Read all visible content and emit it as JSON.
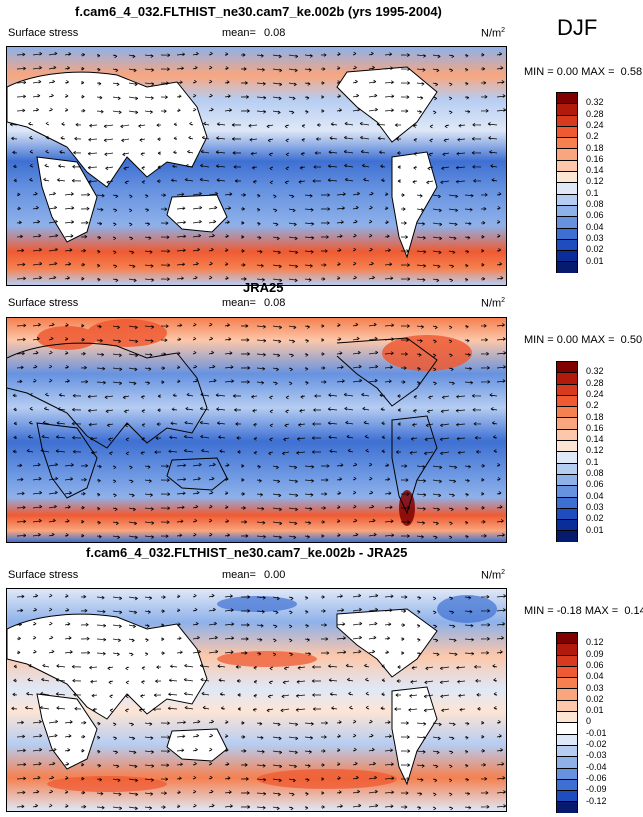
{
  "season": "DJF",
  "panels": [
    {
      "title": "f.cam6_4_032.FLTHIST_ne30.cam7_ke.002b (yrs 1995-2004)",
      "variable": "Surface stress",
      "mean_label": "mean=",
      "mean_value": "0.08",
      "units": "N/m",
      "units_exp": "2",
      "min_label": "MIN =",
      "min_value": "0.00",
      "max_label": "MAX =",
      "max_value": "0.58",
      "levels": [
        "0.32",
        "0.28",
        "0.24",
        "0.2",
        "0.18",
        "0.16",
        "0.14",
        "0.12",
        "0.1",
        "0.08",
        "0.06",
        "0.04",
        "0.03",
        "0.02",
        "0.01"
      ],
      "colors": [
        "#800000",
        "#b21b0c",
        "#d73a1c",
        "#ef5a32",
        "#f6804f",
        "#f9a67e",
        "#fcc7aa",
        "#fde5d4",
        "#dfe8f7",
        "#b6cdf2",
        "#8eb1ea",
        "#6692e0",
        "#3e70d3",
        "#1f4dbf",
        "#0a2d99",
        "#061a6e"
      ]
    },
    {
      "title": "JRA25",
      "variable": "Surface stress",
      "mean_label": "mean=",
      "mean_value": "0.08",
      "units": "N/m",
      "units_exp": "2",
      "min_label": "MIN =",
      "min_value": "0.00",
      "max_label": "MAX =",
      "max_value": "0.50",
      "levels": [
        "0.32",
        "0.28",
        "0.24",
        "0.2",
        "0.18",
        "0.16",
        "0.14",
        "0.12",
        "0.1",
        "0.08",
        "0.06",
        "0.04",
        "0.03",
        "0.02",
        "0.01"
      ],
      "colors": [
        "#800000",
        "#b21b0c",
        "#d73a1c",
        "#ef5a32",
        "#f6804f",
        "#f9a67e",
        "#fcc7aa",
        "#fde5d4",
        "#dfe8f7",
        "#b6cdf2",
        "#8eb1ea",
        "#6692e0",
        "#3e70d3",
        "#1f4dbf",
        "#0a2d99",
        "#061a6e"
      ]
    },
    {
      "title": "f.cam6_4_032.FLTHIST_ne30.cam7_ke.002b - JRA25",
      "variable": "Surface stress",
      "mean_label": "mean=",
      "mean_value": "0.00",
      "units": "N/m",
      "units_exp": "2",
      "min_label": "MIN =",
      "min_value": "-0.18",
      "max_label": "MAX =",
      "max_value": "0.14",
      "levels": [
        "0.12",
        "0.09",
        "0.06",
        "0.04",
        "0.03",
        "0.02",
        "0.01",
        "0",
        "-0.01",
        "-0.02",
        "-0.03",
        "-0.04",
        "-0.06",
        "-0.09",
        "-0.12"
      ],
      "colors": [
        "#800000",
        "#b21b0c",
        "#d73a1c",
        "#ef5a32",
        "#f6804f",
        "#f9a67e",
        "#fcc7aa",
        "#fde5d4",
        "#ffffff",
        "#dfe8f7",
        "#b6cdf2",
        "#8eb1ea",
        "#6692e0",
        "#3e70d3",
        "#1f4dbf",
        "#061a6e"
      ]
    }
  ]
}
